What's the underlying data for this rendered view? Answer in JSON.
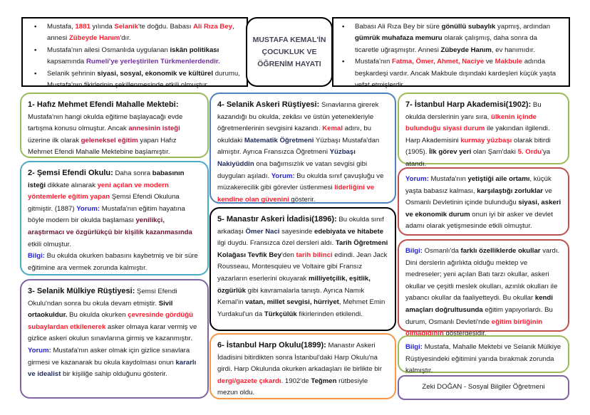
{
  "title": "MUSTAFA KEMAL'İN ÇOCUKLUK VE ÖĞRENİM HAYATI",
  "colors": {
    "red": "#ff1a2e",
    "blue": "#2222dd",
    "purple": "#7030a0",
    "green_border": "#9bbb59",
    "teal_border": "#4bacc6",
    "purple_border": "#8064a2",
    "blue_border": "#4f81bd",
    "orange_border": "#f79646",
    "red_border": "#c0504d"
  },
  "scroll_left": [
    [
      {
        "t": "Mustafa, "
      },
      {
        "t": "1881",
        "s": "r"
      },
      {
        "t": " yılında "
      },
      {
        "t": "Selanik",
        "s": "r"
      },
      {
        "t": "'te doğdu. Babası "
      },
      {
        "t": "Ali Rıza Bey",
        "s": "r"
      },
      {
        "t": ", annesi "
      },
      {
        "t": "Zübeyde Hanım",
        "s": "r"
      },
      {
        "t": "'dır."
      }
    ],
    [
      {
        "t": "Mustafa'nın ailesi Osmanlıda uygulanan "
      },
      {
        "t": "iskân politikası",
        "s": "b"
      },
      {
        "t": " kapsamında "
      },
      {
        "t": "Rumeli'ye yerleştirilen Türkmenlerdendir.",
        "s": "p"
      }
    ],
    [
      {
        "t": "Selanik şehrinin "
      },
      {
        "t": "siyasi, sosyal, ekonomik ve kültürel",
        "s": "b"
      },
      {
        "t": " durumu, Mustafa'nın fikirlerinin şekillenmesinde etkili olmuştur."
      }
    ]
  ],
  "scroll_right": [
    [
      {
        "t": "Babası Ali Rıza Bey bir süre "
      },
      {
        "t": "gönüllü subaylık",
        "s": "b"
      },
      {
        "t": " yapmış, ardından "
      },
      {
        "t": "gümrük muhafaza memuru",
        "s": "b"
      },
      {
        "t": " olarak çalışmış, daha sonra da ticaretle uğraşmıştır. Annesi "
      },
      {
        "t": "Zübeyde Hanım",
        "s": "b"
      },
      {
        "t": ", ev hanımıdır."
      }
    ],
    [
      {
        "t": "Mustafa'nın "
      },
      {
        "t": "Fatma, Ömer, Ahmet, Naciye",
        "s": "r"
      },
      {
        "t": " ve "
      },
      {
        "t": "Makbule",
        "s": "r"
      },
      {
        "t": " adında beşkardeşi vardır. Ancak Makbule dışındaki kardeşleri küçük yaşta vefat etmişlerdir."
      }
    ]
  ],
  "boxes": [
    {
      "paras": [
        [
          {
            "t": "1- Hafız Mehmet Efendi Mahalle Mektebi:",
            "s": "h"
          }
        ],
        [
          {
            "t": "Mustafa'nın hangi okulda eğitime başlayacağı evde tartışma konusu olmuştur. Ancak "
          },
          {
            "t": "annesinin isteği",
            "s": "c"
          },
          {
            "t": " üzerine ilk olarak "
          },
          {
            "t": "geleneksel eğitim",
            "s": "c"
          },
          {
            "t": " yapan Hafız Mehmet Efendi Mahalle Mektebine başlamıştır."
          }
        ]
      ]
    },
    {
      "paras": [
        [
          {
            "t": "2- Şemsi Efendi Okulu:",
            "s": "h"
          },
          {
            "t": " Daha sonra "
          },
          {
            "t": "babasının isteği",
            "s": "b"
          },
          {
            "t": " dikkate alınarak "
          },
          {
            "t": "yeni açılan ve modern yöntemlerle eğitim yapan",
            "s": "r"
          },
          {
            "t": " Şemsi Efendi Okuluna gitmiştir. (1887) "
          },
          {
            "t": "Yorum:",
            "s": "bl"
          },
          {
            "t": " Mustafa'nın eğitim hayatına böyle modern bir okulda başlaması "
          },
          {
            "t": "yenilikçi, araştırmacı ve özgürlükçü bir kişilik kazanmasında",
            "s": "m"
          },
          {
            "t": " etkili olmuştur."
          }
        ],
        [
          {
            "t": "Bilgi:",
            "s": "bl"
          },
          {
            "t": " Bu okulda okurken babasını kaybetmiş ve bir süre eğitimine ara vermek zorunda kalmıştır."
          }
        ]
      ]
    },
    {
      "paras": [
        [
          {
            "t": "3- Selanik Mülkiye Rüştiyesi:",
            "s": "h"
          },
          {
            "t": " Şemsi Efendi Okulu'ndan sonra bu okula devam etmiştir. "
          },
          {
            "t": "Sivil ortaokuldur.",
            "s": "b"
          },
          {
            "t": " Bu okulda okurken "
          },
          {
            "t": "çevresinde gördüğü subaylardan etkilenerek",
            "s": "r"
          },
          {
            "t": " asker olmaya karar vermiş ve gizlice askeri okulun sınavlarına girmiş ve kazanmıştır."
          }
        ],
        [
          {
            "t": "Yorum:",
            "s": "bl"
          },
          {
            "t": " Mustafa'nın asker olmak için gizlice sınavlara girmesi ve kazanarak bu okula kaydolması onun "
          },
          {
            "t": "kararlı ve idealist",
            "s": "n"
          },
          {
            "t": " bir kişiliğe sahip olduğunu gösterir."
          }
        ]
      ]
    },
    {
      "paras": [
        [
          {
            "t": "4- Selanik Askeri Rüştiyesi:",
            "s": "h"
          },
          {
            "t": " Sınavlarına girerek kazandığı bu okulda, zekâsı ve üstün yetenekleriyle öğretmenlerinin sevgisini kazandı. "
          },
          {
            "t": "Kemal",
            "s": "r"
          },
          {
            "t": " adını, bu okuldaki "
          },
          {
            "t": "Matematik Öğretmeni",
            "s": "n"
          },
          {
            "t": " Yüzbaşı Mustafa'dan almıştır. Ayrıca Fransızca Öğretmeni "
          },
          {
            "t": "Yüzbaşı Nakiyüddin",
            "s": "n"
          },
          {
            "t": " ona bağımsızlık ve vatan sevgisi gibi duyguları aşıladı.  "
          },
          {
            "t": "Yorum:",
            "s": "bl"
          },
          {
            "t": " Bu okulda sınıf çavuşluğu ve müzakerecilik gibi görevler üstlenmesi "
          },
          {
            "t": "liderliğini ve kendine olan güvenini",
            "s": "r"
          },
          {
            "t": " gösterir."
          }
        ]
      ]
    },
    {
      "paras": [
        [
          {
            "t": "5- Manastır Askeri İdadisi(1896):",
            "s": "h"
          },
          {
            "t": " Bu okulda sınıf arkadaşı "
          },
          {
            "t": "Ömer Naci",
            "s": "n"
          },
          {
            "t": " sayesinde "
          },
          {
            "t": "edebiyata ve hitabete",
            "s": "b"
          },
          {
            "t": " ilgi duydu. Fransızca özel dersleri aldı. "
          },
          {
            "t": "Tarih Öğretmeni Kolağası Tevfik Bey",
            "s": "b"
          },
          {
            "t": "'den "
          },
          {
            "t": "tarih bilinci",
            "s": "r"
          },
          {
            "t": " edindi. Jean Jack Rousseau, Montesquieu ve Voltaire gibi Fransız yazarların eserlerini okuyarak "
          },
          {
            "t": "milliyetçilik, eşitlik, özgürlük",
            "s": "b"
          },
          {
            "t": " gibi kavramalarla tanıştı. Ayrıca Namık Kemal'in "
          },
          {
            "t": "vatan, millet sevgisi, hürriyet",
            "s": "b"
          },
          {
            "t": ", Mehmet Emin Yurdakul'un da "
          },
          {
            "t": "Türkçülük",
            "s": "b"
          },
          {
            "t": " fikirlerinden etkilendi."
          }
        ]
      ]
    },
    {
      "paras": [
        [
          {
            "t": "6- İstanbul Harp Okulu(1899):",
            "s": "h"
          },
          {
            "t": " Manastır Askeri İdadisini bitirdikten sonra İstanbul'daki Harp Okulu'na girdi. Harp Okulunda okurken arkadaşları ile birlikte bir "
          },
          {
            "t": "dergi/gazete çıkardı",
            "s": "r"
          },
          {
            "t": ". 1902'de "
          },
          {
            "t": "Teğmen",
            "s": "b"
          },
          {
            "t": " rütbesiyle mezun oldu."
          }
        ]
      ]
    },
    {
      "paras": [
        [
          {
            "t": "7- İstanbul Harp Akademisi(1902):",
            "s": "h"
          },
          {
            "t": " Bu okulda derslerinin yanı sıra, "
          },
          {
            "t": "ülkenin içinde bulunduğu siyasi durum",
            "s": "r"
          },
          {
            "t": " ile yakından ilgilendi. Harp Akademisini "
          },
          {
            "t": "kurmay yüzbaşı",
            "s": "r"
          },
          {
            "t": " olarak bitirdi (1905).  "
          },
          {
            "t": "İlk görev yeri",
            "s": "b"
          },
          {
            "t": " olan Şam'daki "
          },
          {
            "t": "5. Ordu",
            "s": "r"
          },
          {
            "t": "'ya atandı."
          }
        ]
      ]
    },
    {
      "paras": [
        [
          {
            "t": "Yorum:",
            "s": "bl"
          },
          {
            "t": " Mustafa'nın "
          },
          {
            "t": "yetiştiği aile ortamı",
            "s": "b"
          },
          {
            "t": ", küçük yaşta babasız kalması, "
          },
          {
            "t": "karşılaştığı zorluklar",
            "s": "b"
          },
          {
            "t": " ve Osmanlı Devletinin içinde bulunduğu "
          },
          {
            "t": "siyasi, askeri ve ekonomik durum",
            "s": "b"
          },
          {
            "t": " onun iyi bir asker ve devlet adamı olarak yetişmesinde etkili olmuştur."
          }
        ]
      ]
    },
    {
      "paras": [
        [
          {
            "t": "Bilgi:",
            "s": "bl"
          },
          {
            "t": " Osmanlı'da "
          },
          {
            "t": "farklı özelliklerde okullar",
            "s": "b"
          },
          {
            "t": " vardı. Dini derslerin ağırlıkta olduğu mektep ve medreseler; yeni açılan Batı tarzı okullar, askeri okullar ve çeşitli meslek okulları, azınlık okulları ile yabancı okullar da faaliyetteydi. Bu okullar "
          },
          {
            "t": "kendi amaçları doğrultusunda",
            "s": "b"
          },
          {
            "t": " eğitim yapıyorlardı. Bu durum, Osmanlı Devleti'nde "
          },
          {
            "t": "eğitim birliğinin olmadığının",
            "s": "r"
          },
          {
            "t": " göstergesidir."
          }
        ]
      ]
    },
    {
      "paras": [
        [
          {
            "t": "Bilgi:",
            "s": "bl"
          },
          {
            "t": " Mustafa, Mahalle Mektebi ve Selanik Mülkiye Rüştiyesindeki eğitimini yarıda bırakmak zorunda kalmıştır."
          }
        ]
      ]
    }
  ],
  "footer": "Zeki DOĞAN - Sosyal Bilgiler Öğretmeni"
}
